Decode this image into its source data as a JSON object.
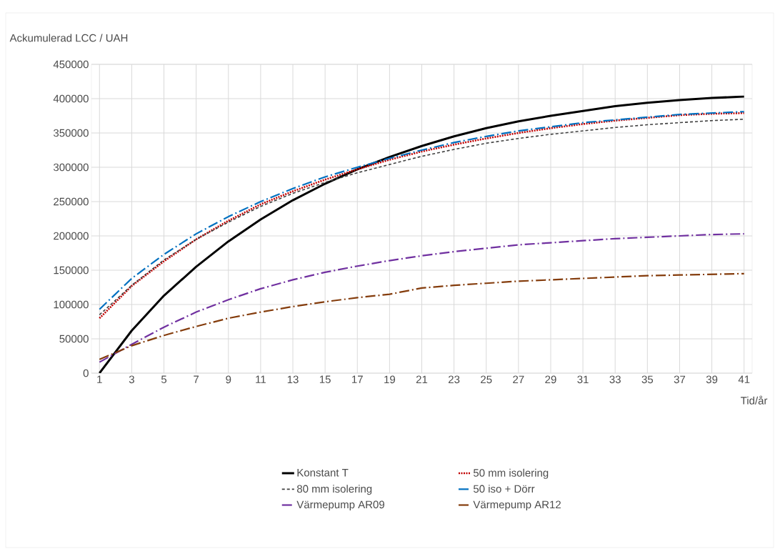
{
  "chart_data": {
    "type": "line",
    "xlabel": "Tid/år",
    "ylabel": "Ackumulerad LCC / UAH",
    "x": [
      1,
      3,
      5,
      7,
      9,
      11,
      13,
      15,
      17,
      19,
      21,
      23,
      25,
      27,
      29,
      31,
      33,
      35,
      37,
      39,
      41
    ],
    "xlim": [
      0.5,
      41.5
    ],
    "xticks": [
      1,
      3,
      5,
      7,
      9,
      11,
      13,
      15,
      17,
      19,
      21,
      23,
      25,
      27,
      29,
      31,
      33,
      35,
      37,
      39,
      41
    ],
    "ylim": [
      0,
      450000
    ],
    "yticks": [
      0,
      50000,
      100000,
      150000,
      200000,
      250000,
      300000,
      350000,
      400000,
      450000
    ],
    "grid": true,
    "legend": "bottom",
    "marker": "none",
    "series": [
      {
        "name": "Konstant T",
        "color": "#000000",
        "line_style": "solid",
        "values": [
          0,
          62000,
          113000,
          155000,
          192000,
          224000,
          252000,
          276000,
          297000,
          315000,
          331000,
          345000,
          357000,
          367000,
          375000,
          382000,
          389000,
          394000,
          398000,
          401000,
          403000
        ]
      },
      {
        "name": "50 mm isolering",
        "color": "#c00000",
        "line_style": "dotted",
        "values": [
          80000,
          127000,
          163000,
          195000,
          222000,
          246000,
          265000,
          282000,
          297000,
          311000,
          323000,
          333000,
          342000,
          350000,
          357000,
          363000,
          368000,
          372000,
          376000,
          378000,
          379000
        ]
      },
      {
        "name": "80 mm isolering",
        "color": "#404040",
        "line_style": "dashed",
        "values": [
          85000,
          128000,
          165000,
          195000,
          220000,
          243000,
          262000,
          278000,
          292000,
          304000,
          316000,
          326000,
          335000,
          342000,
          348000,
          353000,
          358000,
          362000,
          365000,
          368000,
          370000
        ]
      },
      {
        "name": "50 iso + Dörr",
        "color": "#0070c0",
        "line_style": "dashdot",
        "values": [
          93000,
          138000,
          173000,
          203000,
          228000,
          250000,
          269000,
          286000,
          300000,
          313000,
          325000,
          336000,
          345000,
          353000,
          359000,
          365000,
          369000,
          373000,
          377000,
          379000,
          381000
        ]
      },
      {
        "name": "Värmepump AR09",
        "color": "#7030a0",
        "line_style": "dashdot",
        "values": [
          16000,
          42000,
          67000,
          89000,
          107000,
          123000,
          136000,
          147000,
          156000,
          164000,
          171000,
          177000,
          182000,
          187000,
          190000,
          193000,
          196000,
          198000,
          200000,
          202000,
          203000
        ]
      },
      {
        "name": "Värmepump AR12",
        "color": "#843c0c",
        "line_style": "dashdot",
        "values": [
          20000,
          40000,
          55000,
          68000,
          80000,
          89000,
          97000,
          104000,
          110000,
          115000,
          124000,
          128000,
          131000,
          134000,
          136000,
          138000,
          140000,
          142000,
          143000,
          144000,
          145000
        ]
      }
    ]
  }
}
